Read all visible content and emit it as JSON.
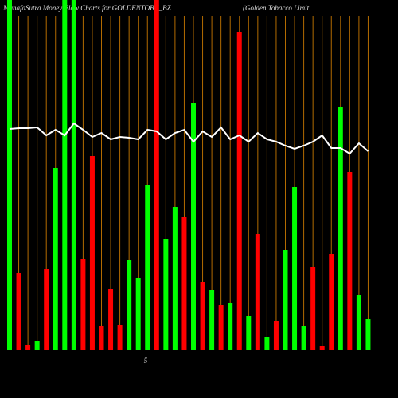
{
  "chart_data": {
    "type": "bar",
    "title": "MunafaSutra  Money Flow  Charts for GOLDENTOBC_BZ",
    "subtitle": "(Golden  Tobacco  Limit",
    "axis_note": "5",
    "values": [
      440,
      97,
      7,
      12,
      102,
      229,
      440,
      440,
      114,
      244,
      31,
      77,
      32,
      113,
      91,
      208,
      440,
      140,
      180,
      168,
      310,
      86,
      76,
      57,
      59,
      400,
      43,
      146,
      17,
      37,
      126,
      205,
      31,
      104,
      5,
      121,
      305,
      224,
      69,
      39
    ],
    "colors": [
      "#00ff00",
      "#ff0000",
      "#ff0000",
      "#00ff00",
      "#ff0000",
      "#00ff00",
      "#00ff00",
      "#00ff00",
      "#ff0000",
      "#ff0000",
      "#ff0000",
      "#ff0000",
      "#ff0000",
      "#00ff00",
      "#00ff00",
      "#00ff00",
      "#ff0000",
      "#00ff00",
      "#00ff00",
      "#ff0000",
      "#00ff00",
      "#ff0000",
      "#00ff00",
      "#ff0000",
      "#00ff00",
      "#ff0000",
      "#00ff00",
      "#ff0000",
      "#00ff00",
      "#ff0000",
      "#00ff00",
      "#00ff00",
      "#00ff00",
      "#ff0000",
      "#ff0000",
      "#ff0000",
      "#00ff00",
      "#ff0000",
      "#00ff00",
      "#00ff00"
    ],
    "line_values": [
      278,
      279,
      279,
      280,
      270,
      277,
      270,
      285,
      277,
      268,
      273,
      265,
      268,
      267,
      265,
      277,
      275,
      265,
      273,
      277,
      262,
      275,
      268,
      280,
      265,
      270,
      262,
      273,
      265,
      262,
      257,
      253,
      257,
      262,
      270,
      254,
      254,
      247,
      260,
      250
    ],
    "line_color": "#ffffff",
    "vline_color": "#b36b00",
    "ylim": [
      0,
      440
    ]
  }
}
